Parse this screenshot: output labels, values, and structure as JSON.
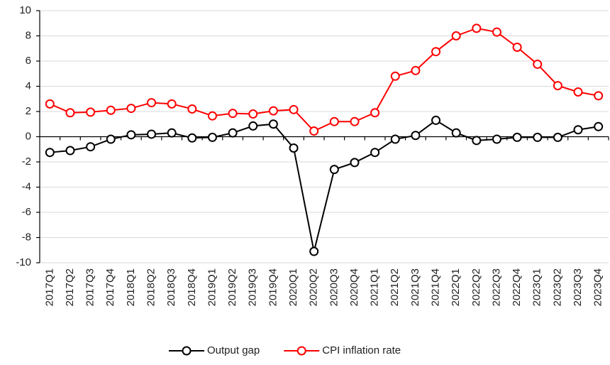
{
  "chart_data": {
    "type": "line",
    "categories": [
      "2017Q1",
      "2017Q2",
      "2017Q3",
      "2017Q4",
      "2018Q1",
      "2018Q2",
      "2018Q3",
      "2018Q4",
      "2019Q1",
      "2019Q2",
      "2019Q3",
      "2019Q4",
      "2020Q1",
      "2020Q2",
      "2020Q3",
      "2020Q4",
      "2021Q1",
      "2021Q2",
      "2021Q3",
      "2021Q4",
      "2022Q1",
      "2022Q2",
      "2022Q3",
      "2022Q4",
      "2023Q1",
      "2023Q2",
      "2023Q3",
      "2023Q4"
    ],
    "series": [
      {
        "name": "Output gap",
        "color": "#000000",
        "values": [
          -1.25,
          -1.1,
          -0.8,
          -0.2,
          0.15,
          0.2,
          0.3,
          -0.1,
          -0.05,
          0.3,
          0.85,
          1.0,
          -0.9,
          -9.1,
          -2.6,
          -2.05,
          -1.25,
          -0.2,
          0.1,
          1.3,
          0.3,
          -0.3,
          -0.2,
          -0.05,
          -0.05,
          -0.05,
          0.55,
          0.8
        ]
      },
      {
        "name": "CPI inflation rate",
        "color": "#ff0000",
        "values": [
          2.6,
          1.9,
          1.95,
          2.1,
          2.25,
          2.7,
          2.6,
          2.2,
          1.65,
          1.85,
          1.8,
          2.05,
          2.15,
          0.45,
          1.2,
          1.2,
          1.9,
          4.8,
          5.25,
          6.75,
          8.0,
          8.6,
          8.3,
          7.1,
          5.75,
          4.05,
          3.55,
          3.25
        ]
      }
    ],
    "ylim": [
      -10,
      10
    ],
    "yticks": [
      -10,
      -8,
      -6,
      -4,
      -2,
      0,
      2,
      4,
      6,
      8,
      10
    ],
    "grid": true,
    "legend": "bottom"
  }
}
